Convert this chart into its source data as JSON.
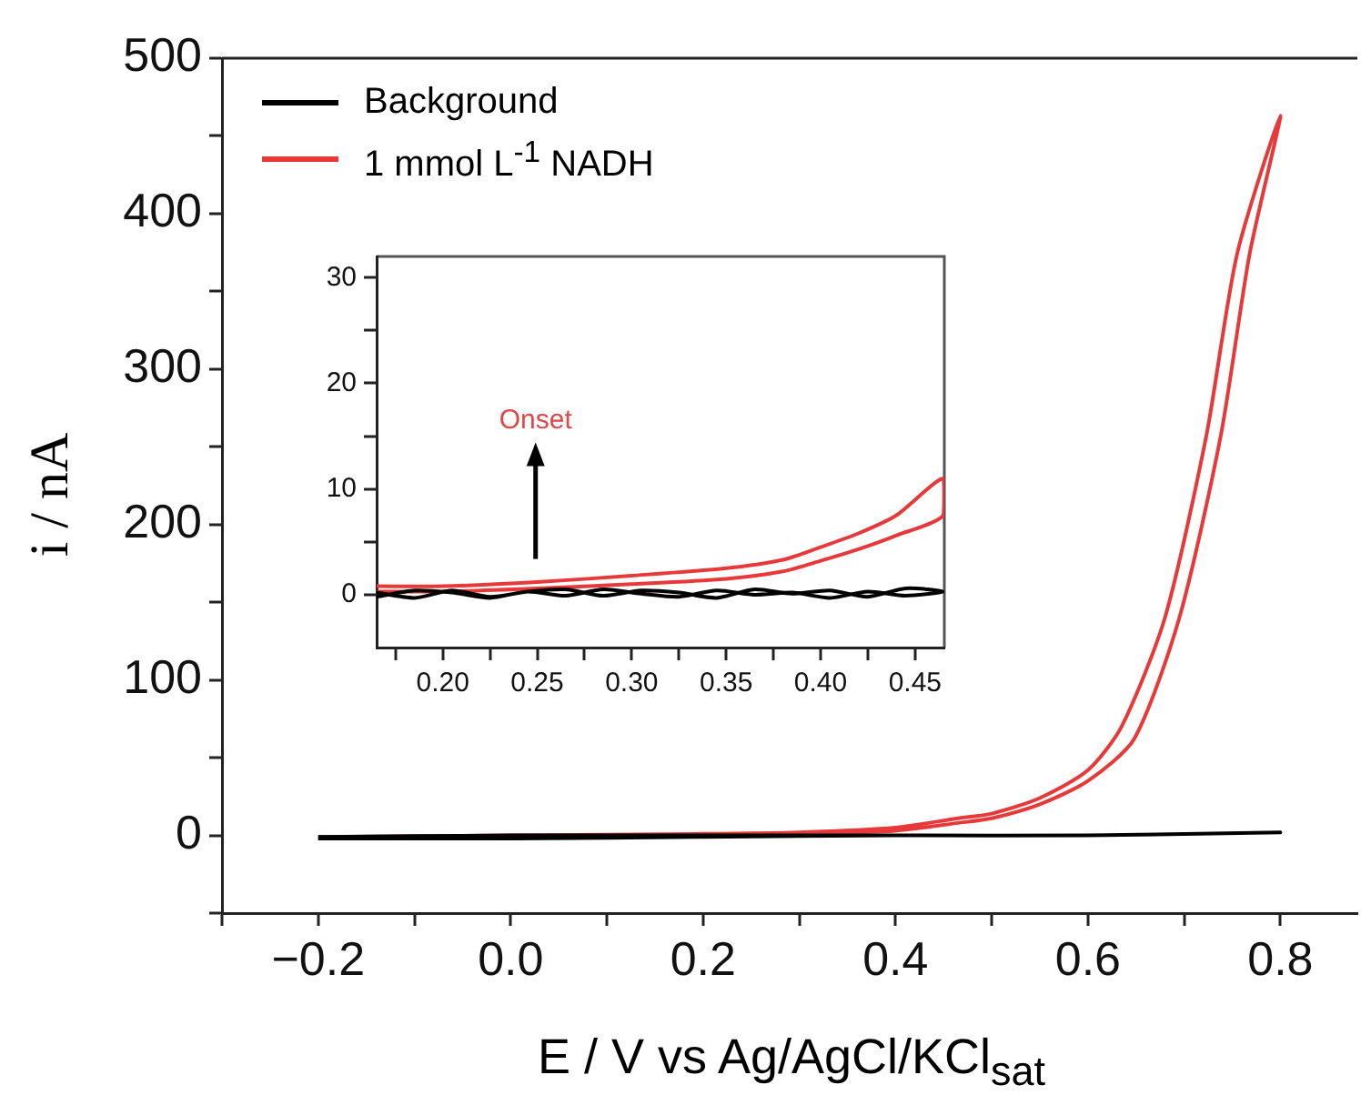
{
  "chart_data": [
    {
      "type": "line",
      "xlabel": "E / V vs Ag/AgCl/KCl$_{sat}$",
      "ylabel": "i / nA",
      "xlim": [
        -0.3,
        0.88
      ],
      "ylim": [
        -50,
        500
      ],
      "xticks": [
        {
          "value": -0.3,
          "label": null
        },
        {
          "value": -0.2,
          "label": "−0.2"
        },
        {
          "value": -0.1,
          "label": null
        },
        {
          "value": 0,
          "label": "0.0"
        },
        {
          "value": 0.1,
          "label": null
        },
        0.2,
        {
          "value": 0.3,
          "label": null
        },
        0.4,
        {
          "value": 0.5,
          "label": null
        },
        0.6,
        {
          "value": 0.7,
          "label": null
        },
        0.8
      ],
      "yticks": [
        {
          "value": -50,
          "label": null
        },
        0,
        {
          "value": 50,
          "label": null
        },
        100,
        {
          "value": 150,
          "label": null
        },
        200,
        {
          "value": 250,
          "label": null
        },
        300,
        {
          "value": 350,
          "label": null
        },
        400,
        {
          "value": 450,
          "label": null
        },
        500
      ],
      "grid": false,
      "legend": "top left",
      "series": [
        {
          "name": "Background",
          "color": "#000000",
          "x": [
            -0.2,
            0,
            0.2,
            0.4,
            0.6,
            0.8,
            0.8,
            0.6,
            0.4,
            0.2,
            0,
            -0.2
          ],
          "values": [
            -1,
            0,
            0,
            0,
            0,
            2,
            2,
            0,
            0,
            -1,
            -2,
            -2
          ]
        },
        {
          "name": "1 mmol L$^{-1}$ NADH",
          "color": "#e8393a",
          "x": [
            -0.2,
            0,
            0.2,
            0.3,
            0.4,
            0.465,
            0.5,
            0.55,
            0.6,
            0.648,
            0.695,
            0.738,
            0.768,
            0.8,
            0.755,
            0.723,
            0.68,
            0.635,
            0.6,
            0.55,
            0.5,
            0.465,
            0.4,
            0.3,
            0.2,
            0,
            -0.2
          ],
          "values": [
            -2,
            -1,
            0,
            1,
            3,
            8,
            11,
            20,
            35,
            62,
            140,
            257,
            374,
            463,
            374,
            257,
            140,
            70,
            42,
            24,
            14,
            11,
            5,
            2,
            1,
            0,
            -1
          ]
        }
      ]
    },
    {
      "type": "line",
      "xlim": [
        0.165,
        0.4655
      ],
      "ylim": [
        -5,
        32
      ],
      "xticks": [
        {
          "value": 0.175,
          "label": null
        },
        {
          "value": 0.2,
          "label": "0.20"
        },
        {
          "value": 0.225,
          "label": null
        },
        0.25,
        {
          "value": 0.275,
          "label": null
        },
        {
          "value": 0.3,
          "label": "0.30"
        },
        {
          "value": 0.325,
          "label": null
        },
        0.35,
        {
          "value": 0.375,
          "label": null
        },
        {
          "value": 0.4,
          "label": "0.40"
        },
        {
          "value": 0.425,
          "label": null
        },
        0.45
      ],
      "yticks": [
        0,
        {
          "value": 5,
          "label": null
        },
        10,
        {
          "value": 15,
          "label": null
        },
        20,
        {
          "value": 25,
          "label": null
        },
        30
      ],
      "grid": false,
      "annotations": [
        "Onset"
      ],
      "series": [
        {
          "color": "#000000",
          "x": [
            0.165,
            0.185,
            0.205,
            0.225,
            0.245,
            0.265,
            0.285,
            0.305,
            0.325,
            0.345,
            0.365,
            0.385,
            0.405,
            0.425,
            0.445,
            0.465,
            0.445,
            0.425,
            0.405,
            0.385,
            0.365,
            0.345,
            0.325,
            0.305,
            0.285,
            0.265,
            0.245,
            0.225,
            0.205,
            0.185,
            0.165
          ],
          "values": [
            0.2,
            -0.3,
            0.4,
            -0.2,
            0.3,
            0.5,
            -0.1,
            0.4,
            0.2,
            -0.3,
            0.5,
            0.1,
            0.4,
            -0.2,
            0.6,
            0.3,
            -0.1,
            0.3,
            -0.3,
            0.2,
            0,
            0.4,
            -0.2,
            0.1,
            0.5,
            -0.1,
            0.3,
            -0.3,
            0.2,
            0.4,
            -0.2
          ]
        },
        {
          "color": "#e8393a",
          "x": [
            0.165,
            0.2,
            0.25,
            0.3,
            0.35,
            0.38,
            0.4,
            0.42,
            0.44,
            0.465,
            0.465,
            0.44,
            0.42,
            0.4,
            0.38,
            0.35,
            0.3,
            0.25,
            0.2,
            0.165
          ],
          "values": [
            0.3,
            0.3,
            0.6,
            1,
            1.5,
            2.2,
            3.2,
            4.3,
            5.6,
            7.5,
            11,
            7.5,
            5.8,
            4.5,
            3.3,
            2.5,
            1.8,
            1.2,
            0.8,
            0.8
          ]
        }
      ]
    }
  ]
}
